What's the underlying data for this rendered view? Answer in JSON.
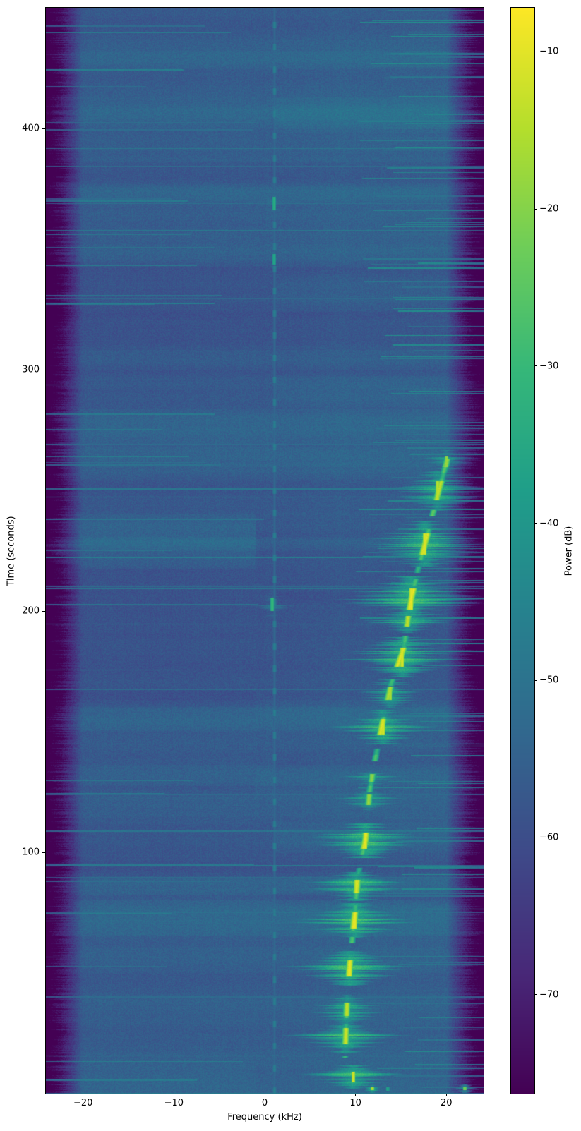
{
  "axes": {
    "xlabel": "Frequency (kHz)",
    "ylabel": "Time (seconds)",
    "xticks": [
      -20,
      -10,
      0,
      10,
      20
    ],
    "xtick_labels": [
      "−20",
      "−10",
      "0",
      "10",
      "20"
    ],
    "yticks": [
      100,
      200,
      300,
      400
    ],
    "ytick_labels": [
      "100",
      "200",
      "300",
      "400"
    ],
    "xlim": [
      -24.1,
      24.1
    ],
    "ylim": [
      0,
      450
    ]
  },
  "colorbar": {
    "label": "Power (dB)",
    "ticks": [
      -10,
      -20,
      -30,
      -40,
      -50,
      -60,
      -70
    ],
    "tick_labels": [
      "−10",
      "−20",
      "−30",
      "−40",
      "−50",
      "−60",
      "−70"
    ],
    "vmin": -76.3,
    "vmax": -7.2,
    "colormap": "viridis"
  },
  "chart_data": {
    "type": "heatmap",
    "title": "",
    "xlabel": "Frequency (kHz)",
    "ylabel": "Time (seconds)",
    "xlim": [
      -24.1,
      24.1
    ],
    "ylim": [
      0,
      450
    ],
    "colormap": "viridis",
    "power_db": {
      "vmin": -76.3,
      "vmax": -7.2,
      "noise_floor_db": -56.5,
      "band_edge_khz": 20.0,
      "edge_floor_db": -76
    },
    "narrowband_tone": {
      "freq_khz": 1.05,
      "dotted_period_s": 9.2,
      "dot_duty_s": 2.6,
      "dot_level_db": -47.5,
      "base_level_db": -53
    },
    "doppler_track_points": [
      [
        15,
        8.8
      ],
      [
        40,
        9.05
      ],
      [
        55,
        9.35
      ],
      [
        75,
        9.9
      ],
      [
        90,
        10.2
      ],
      [
        105,
        11.05
      ],
      [
        125,
        11.5
      ],
      [
        140,
        12.2
      ],
      [
        155,
        13.0
      ],
      [
        170,
        13.9
      ],
      [
        185,
        15.3
      ],
      [
        196,
        15.7
      ],
      [
        205,
        16.1
      ],
      [
        215,
        16.7
      ],
      [
        225,
        17.4
      ],
      [
        235,
        18.1
      ],
      [
        245,
        18.8
      ],
      [
        255,
        19.5
      ],
      [
        263,
        20.1
      ]
    ],
    "burst_events": [
      {
        "t": 2.0,
        "dur": 1.4,
        "fc_khz": 13.5,
        "level_db": -36,
        "spread_khz": 10.0,
        "flat": true
      },
      {
        "t": 2.1,
        "dur": 1.0,
        "fc_khz": 11.8,
        "level_db": -15,
        "spread_khz": 0.8
      },
      {
        "t": 2.3,
        "dur": 1.0,
        "fc_khz": 22.0,
        "level_db": -13,
        "spread_khz": 1.0
      },
      {
        "t": 7,
        "dur": 4,
        "fc_khz": 9.7,
        "level_db": -12,
        "spread_khz": 3.4
      },
      {
        "t": 24,
        "dur": 6,
        "fc_khz": 8.9,
        "level_db": -13,
        "spread_khz": 3.4
      },
      {
        "t": 35,
        "dur": 5,
        "fc_khz": 9.05,
        "level_db": -14,
        "spread_khz": 3.2
      },
      {
        "t": 52,
        "dur": 6,
        "fc_khz": 9.35,
        "level_db": -10,
        "spread_khz": 3.6
      },
      {
        "t": 72,
        "dur": 6,
        "fc_khz": 9.9,
        "level_db": -9.5,
        "spread_khz": 3.8
      },
      {
        "t": 86,
        "dur": 5,
        "fc_khz": 10.05,
        "level_db": -11,
        "spread_khz": 3.4
      },
      {
        "t": 105,
        "dur": 6,
        "fc_khz": 11.05,
        "level_db": -10,
        "spread_khz": 3.6
      },
      {
        "t": 122,
        "dur": 4,
        "fc_khz": 11.4,
        "level_db": -18,
        "spread_khz": 2.6
      },
      {
        "t": 131,
        "dur": 3,
        "fc_khz": 11.7,
        "level_db": -20,
        "spread_khz": 2.4
      },
      {
        "t": 152,
        "dur": 6,
        "fc_khz": 13.0,
        "level_db": -11,
        "spread_khz": 3.4
      },
      {
        "t": 166,
        "dur": 5,
        "fc_khz": 13.8,
        "level_db": -16,
        "spread_khz": 2.8
      },
      {
        "t": 181,
        "dur": 7,
        "fc_khz": 15.1,
        "level_db": -11,
        "spread_khz": 3.4
      },
      {
        "t": 196,
        "dur": 4,
        "fc_khz": 15.7,
        "level_db": -14,
        "spread_khz": 2.8
      },
      {
        "t": 205,
        "dur": 8,
        "fc_khz": 16.1,
        "level_db": -10,
        "spread_khz": 3.8
      },
      {
        "t": 228,
        "dur": 8,
        "fc_khz": 17.6,
        "level_db": -11,
        "spread_khz": 3.6
      },
      {
        "t": 250,
        "dur": 7,
        "fc_khz": 19.0,
        "level_db": -14,
        "spread_khz": 3.2
      },
      {
        "t": 262,
        "dur": 4,
        "fc_khz": 20.0,
        "level_db": -18,
        "spread_khz": 2.6
      },
      {
        "t": 203,
        "dur": 5,
        "fc_khz": 0.8,
        "level_db": -30,
        "spread_khz": 2.6
      },
      {
        "t": 346,
        "dur": 4,
        "fc_khz": 1.0,
        "level_db": -36,
        "spread_khz": 2.8
      },
      {
        "t": 369,
        "dur": 5,
        "fc_khz": 1.0,
        "level_db": -34,
        "spread_khz": 3.2
      }
    ],
    "background_bands": [
      {
        "t0": 66,
        "t1": 80,
        "zone": "full",
        "amp_db": 3.2
      },
      {
        "t0": 83,
        "t1": 90,
        "zone": "full",
        "amp_db": 2.6
      },
      {
        "t0": 100,
        "t1": 112,
        "zone": "right",
        "amp_db": 2.4
      },
      {
        "t0": 128,
        "t1": 136,
        "zone": "full",
        "amp_db": 2.4
      },
      {
        "t0": 150,
        "t1": 160,
        "zone": "full",
        "amp_db": 2.0
      },
      {
        "t0": 218,
        "t1": 240,
        "zone": "left",
        "amp_db": 3.8
      },
      {
        "t0": 260,
        "t1": 268,
        "zone": "full",
        "amp_db": 2.0
      },
      {
        "t0": 300,
        "t1": 308,
        "zone": "full",
        "amp_db": 2.0
      },
      {
        "t0": 343,
        "t1": 352,
        "zone": "full",
        "amp_db": 2.4
      },
      {
        "t0": 370,
        "t1": 377,
        "zone": "full",
        "amp_db": 2.0
      },
      {
        "t0": 400,
        "t1": 410,
        "zone": "full",
        "amp_db": 2.0
      },
      {
        "t0": 425,
        "t1": 432,
        "zone": "full",
        "amp_db": 2.2
      },
      {
        "t0": 90,
        "t1": 98,
        "zone": "full",
        "amp_db": -1.5
      },
      {
        "t0": 310,
        "t1": 328,
        "zone": "full",
        "amp_db": -1.0
      }
    ],
    "right_edge_streak_times": [
      270,
      277,
      292,
      305,
      330,
      361,
      382,
      392,
      402,
      421,
      432,
      440,
      445
    ],
    "viridis_stops": [
      [
        68,
        1,
        84
      ],
      [
        72,
        40,
        120
      ],
      [
        62,
        74,
        137
      ],
      [
        49,
        104,
        142
      ],
      [
        38,
        130,
        142
      ],
      [
        31,
        158,
        137
      ],
      [
        53,
        183,
        121
      ],
      [
        109,
        205,
        89
      ],
      [
        180,
        222,
        44
      ],
      [
        253,
        231,
        37
      ]
    ]
  }
}
